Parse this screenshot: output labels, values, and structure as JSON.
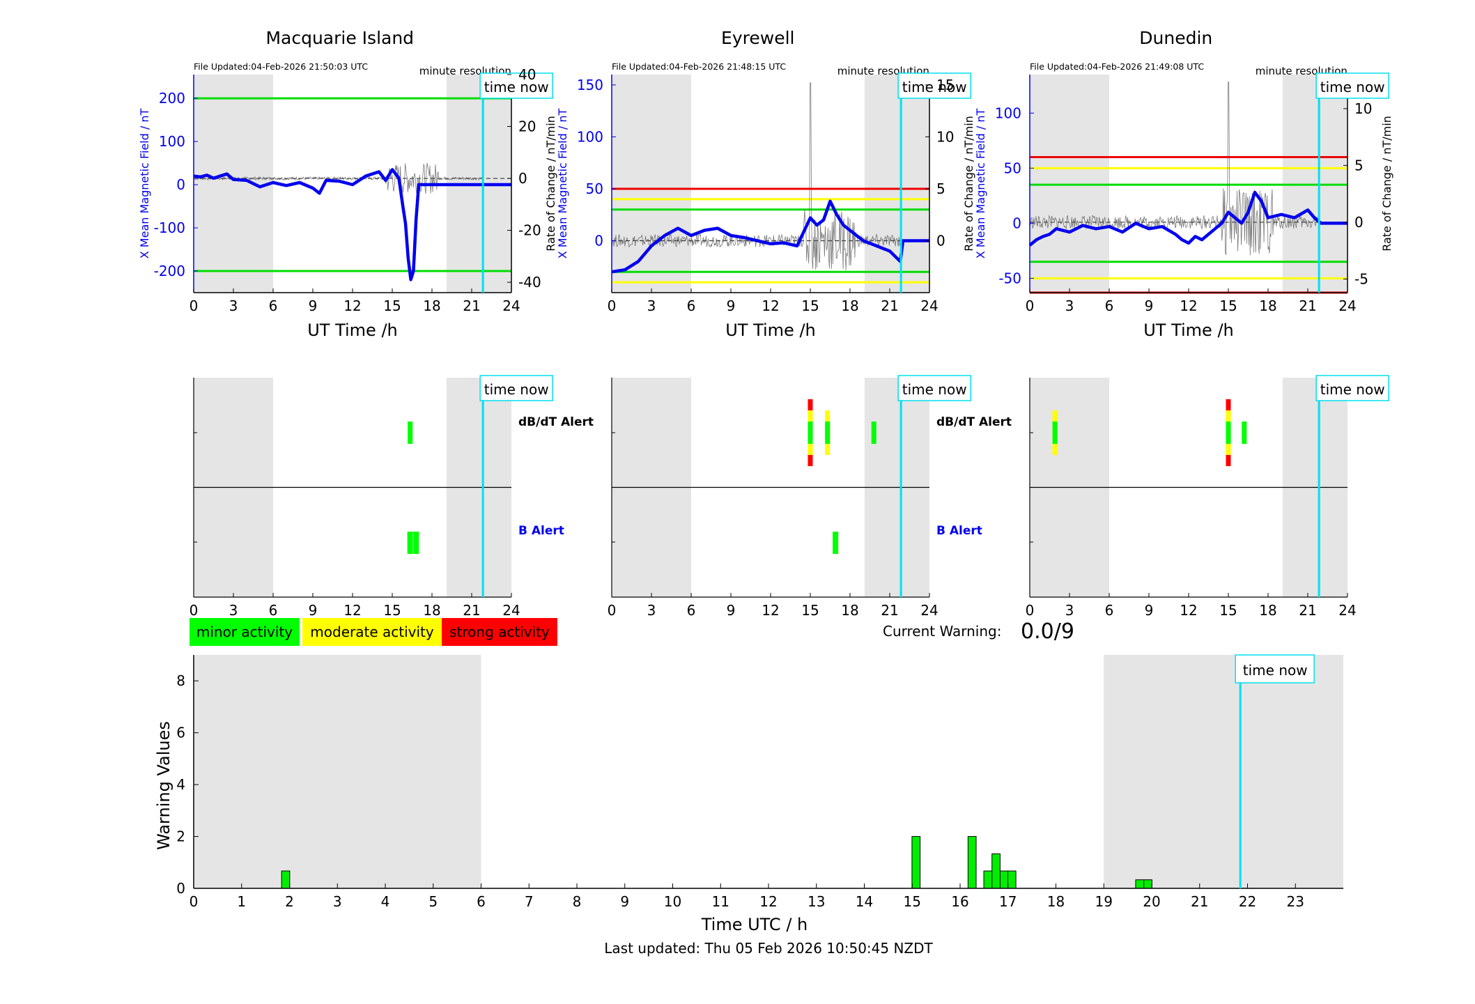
{
  "stations": [
    {
      "name": "Macquarie Island",
      "file_updated": "File Updated:04-Feb-2026 21:50:03 UTC",
      "resolution": "minute resolution",
      "time_now_label": "time now",
      "ylabel_left": "X Mean Magnetic Field / nT",
      "ylabel_right": "Rate of Change / nT/min",
      "xlabel": "UT Time /h",
      "x_ticks": [
        0,
        3,
        6,
        9,
        12,
        15,
        18,
        21,
        24
      ],
      "y_ticks_left": [
        -200,
        -100,
        0,
        100,
        200
      ],
      "y_ticks_right": [
        -40,
        -20,
        0,
        20,
        40
      ],
      "ylim_left": [
        -250,
        255
      ],
      "ylim_right": [
        -44,
        40
      ],
      "shaded_hours": [
        [
          0,
          6
        ],
        [
          19.1,
          24
        ]
      ],
      "time_now_hour": 21.85,
      "thresholds": [
        {
          "value": 200,
          "color": "#00dd00"
        },
        {
          "value": -200,
          "color": "#00dd00"
        }
      ],
      "b_series": {
        "hours": [
          0,
          0.5,
          1,
          1.5,
          2,
          2.5,
          3,
          4,
          5,
          6,
          7,
          8,
          9,
          9.5,
          10,
          11,
          12,
          13,
          14,
          14.5,
          15,
          15.5,
          15.8,
          16,
          16.2,
          16.4,
          16.6,
          16.8,
          17,
          17.2,
          17.5,
          18,
          19,
          20,
          21,
          22,
          24
        ],
        "values": [
          20,
          18,
          22,
          15,
          20,
          25,
          12,
          10,
          -5,
          5,
          -2,
          5,
          -8,
          -20,
          10,
          8,
          0,
          20,
          30,
          10,
          35,
          15,
          -50,
          -90,
          -170,
          -220,
          -200,
          -80,
          0,
          0,
          0,
          0,
          0,
          0,
          0,
          0,
          0
        ]
      },
      "dbdt_alerts": [
        {
          "hour": 16.35,
          "level": "minor"
        }
      ],
      "b_alerts": [
        {
          "hour": 16.35,
          "level": "minor"
        },
        {
          "hour": 16.8,
          "level": "minor"
        }
      ]
    },
    {
      "name": "Eyrewell",
      "file_updated": "File Updated:04-Feb-2026 21:48:15 UTC",
      "resolution": "minute resolution",
      "time_now_label": "time now",
      "ylabel_left": "X Mean Magnetic Field / nT",
      "ylabel_right": "Rate of Change / nT/min",
      "xlabel": "UT Time /h",
      "x_ticks": [
        0,
        3,
        6,
        9,
        12,
        15,
        18,
        21,
        24
      ],
      "y_ticks_left": [
        0,
        50,
        100,
        150
      ],
      "y_ticks_right": [
        0,
        5,
        10,
        15
      ],
      "ylim_left": [
        -50,
        160
      ],
      "ylim_right": [
        -5,
        16
      ],
      "shaded_hours": [
        [
          0,
          6
        ],
        [
          19.1,
          24
        ]
      ],
      "time_now_hour": 21.85,
      "thresholds": [
        {
          "value": 50,
          "color": "#ee0000"
        },
        {
          "value": 40,
          "color": "#ffff00"
        },
        {
          "value": 30,
          "color": "#00dd00"
        },
        {
          "value": -30,
          "color": "#00dd00"
        },
        {
          "value": -40,
          "color": "#ffff00"
        }
      ],
      "b_series": {
        "hours": [
          0,
          1,
          2,
          3,
          4,
          5,
          6,
          7,
          8,
          9,
          10,
          11,
          12,
          13,
          14,
          15,
          15.5,
          16,
          16.5,
          17,
          17.5,
          18,
          19,
          20,
          21,
          21.8,
          22,
          24
        ],
        "values": [
          -30,
          -28,
          -20,
          -5,
          5,
          12,
          5,
          10,
          12,
          5,
          3,
          0,
          -3,
          -2,
          -5,
          22,
          15,
          20,
          38,
          25,
          15,
          10,
          0,
          -5,
          -10,
          -20,
          0,
          0
        ]
      },
      "dbdt_alerts": [
        {
          "hour": 15.0,
          "level": "strong"
        },
        {
          "hour": 16.3,
          "level": "moderate"
        },
        {
          "hour": 19.8,
          "level": "minor"
        }
      ],
      "b_alerts": [
        {
          "hour": 16.9,
          "level": "minor"
        }
      ]
    },
    {
      "name": "Dunedin",
      "file_updated": "File Updated:04-Feb-2026 21:49:08 UTC",
      "resolution": "minute resolution",
      "time_now_label": "time now",
      "ylabel_left": "X Mean Magnetic Field / nT",
      "ylabel_right": "Rate of Change / nT/min",
      "xlabel": "UT Time /h",
      "x_ticks": [
        0,
        3,
        6,
        9,
        12,
        15,
        18,
        21,
        24
      ],
      "y_ticks_left": [
        -50,
        0,
        50,
        100
      ],
      "y_ticks_right": [
        -5,
        0,
        5,
        10
      ],
      "ylim_left": [
        -63,
        135
      ],
      "ylim_right": [
        -6.2,
        13
      ],
      "shaded_hours": [
        [
          0,
          6
        ],
        [
          19.1,
          24
        ]
      ],
      "time_now_hour": 21.85,
      "thresholds": [
        {
          "value": 60,
          "color": "#ee0000"
        },
        {
          "value": 50,
          "color": "#ffff00"
        },
        {
          "value": 35,
          "color": "#00dd00"
        },
        {
          "value": -35,
          "color": "#00dd00"
        },
        {
          "value": -50,
          "color": "#ffff00"
        },
        {
          "value": -63,
          "color": "#ee0000"
        }
      ],
      "b_series": {
        "hours": [
          0,
          0.5,
          1,
          1.5,
          2,
          3,
          4,
          5,
          6,
          7,
          8,
          9,
          10,
          11,
          11.5,
          12,
          12.5,
          13,
          14,
          14.5,
          15,
          15.5,
          16,
          16.5,
          17,
          17.5,
          18,
          19,
          20,
          21,
          21.5,
          22,
          24
        ],
        "values": [
          -20,
          -15,
          -12,
          -10,
          -5,
          -8,
          -2,
          -5,
          -3,
          -8,
          0,
          -5,
          -3,
          -10,
          -15,
          -18,
          -12,
          -15,
          -5,
          0,
          10,
          5,
          0,
          10,
          28,
          20,
          5,
          8,
          5,
          12,
          5,
          0,
          0
        ]
      },
      "dbdt_alerts": [
        {
          "hour": 1.9,
          "level": "moderate"
        },
        {
          "hour": 15.0,
          "level": "strong"
        },
        {
          "hour": 16.2,
          "level": "minor"
        }
      ],
      "b_alerts": []
    }
  ],
  "alert_panel": {
    "dbdt_label": "dB/dT Alert",
    "b_label": "B Alert",
    "time_now_label": "time now",
    "x_ticks": [
      0,
      3,
      6,
      9,
      12,
      15,
      18,
      21,
      24
    ]
  },
  "legend": {
    "minor": {
      "label": "minor activity",
      "color": "#00ff00"
    },
    "moderate": {
      "label": "moderate activity",
      "color": "#ffff00"
    },
    "strong": {
      "label": "strong activity",
      "color": "#ff0000"
    }
  },
  "current_warning": {
    "label": "Current Warning:",
    "value": "0.0/9"
  },
  "chart_data": {
    "type": "bar",
    "ylabel": "Warning Values",
    "xlabel": "Time UTC / h",
    "xlim": [
      0,
      24
    ],
    "ylim": [
      0,
      9
    ],
    "y_ticks": [
      0,
      2,
      4,
      6,
      8
    ],
    "x_ticks": [
      0,
      1,
      2,
      3,
      4,
      5,
      6,
      7,
      8,
      9,
      10,
      11,
      12,
      13,
      14,
      15,
      16,
      17,
      18,
      19,
      20,
      21,
      22,
      23
    ],
    "bar_width_h": 0.17,
    "x": [
      1.92,
      15.08,
      16.25,
      16.58,
      16.75,
      16.92,
      17.08,
      19.75,
      19.92
    ],
    "values": [
      0.67,
      2.0,
      2.0,
      0.67,
      1.33,
      0.67,
      0.67,
      0.33,
      0.33
    ],
    "shaded_hours": [
      [
        0,
        6
      ],
      [
        19.0,
        24
      ]
    ],
    "time_now_hour": 21.85,
    "time_now_label": "time now",
    "grid": false,
    "bar_color": "#00ee00"
  },
  "footer": {
    "last_updated": "Last updated: Thu 05 Feb 2026 10:50:45 NZDT"
  }
}
